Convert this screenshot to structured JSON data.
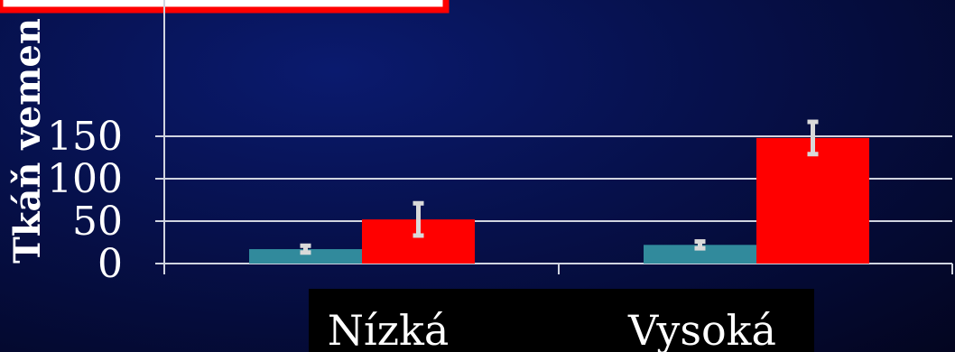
{
  "chart_data": {
    "type": "bar",
    "title": "",
    "ylabel": "Tkáň vemen",
    "xlabel": "",
    "categories": [
      "Nízká",
      "Vysoká"
    ],
    "series": [
      {
        "values": [
          17,
          22
        ],
        "error": [
          4,
          4
        ],
        "color": "#318a9c"
      },
      {
        "values": [
          52,
          148
        ],
        "error": [
          19,
          19
        ],
        "color": "#ff0000"
      }
    ],
    "yticks": [
      "0",
      "50",
      "100",
      "150"
    ],
    "ylim": [
      0,
      160
    ],
    "grid": true,
    "error_bar_color": "#d9d9d9",
    "label_bg_color": "#000000"
  }
}
